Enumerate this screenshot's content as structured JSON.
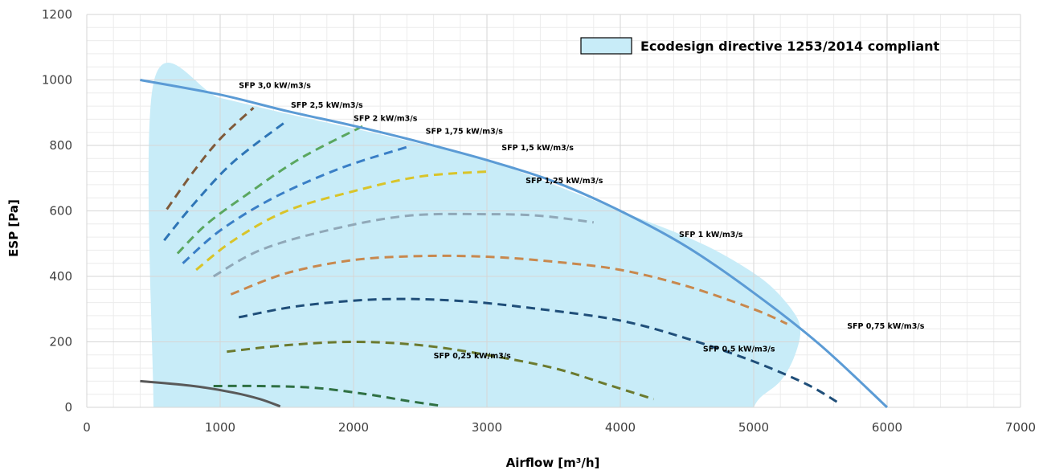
{
  "chart_data": {
    "type": "line",
    "xlabel": "Airflow [m³/h]",
    "ylabel": "ESP [Pa]",
    "xlim": [
      0,
      7000
    ],
    "ylim": [
      0,
      1200
    ],
    "x_ticks": [
      "0",
      "1000",
      "2000",
      "3000",
      "4000",
      "5000",
      "6000",
      "7000"
    ],
    "y_ticks": [
      "0",
      "200",
      "400",
      "600",
      "800",
      "1000",
      "1200"
    ],
    "grid": true,
    "colors": {
      "region_fill": "#c8ecf8",
      "fan_curve": "#5b9bd5",
      "low_curve": "#595959",
      "gridline": "#d9d9d9"
    },
    "region": {
      "label": "Ecodesign directive 1253/2014 compliant",
      "points": [
        [
          500,
          0
        ],
        [
          500,
          990
        ],
        [
          1000,
          945
        ],
        [
          1500,
          897
        ],
        [
          2000,
          852
        ],
        [
          2500,
          805
        ],
        [
          3000,
          755
        ],
        [
          3500,
          680
        ],
        [
          4000,
          600
        ],
        [
          4500,
          520
        ],
        [
          4800,
          460
        ],
        [
          5100,
          380
        ],
        [
          5300,
          290
        ],
        [
          5350,
          230
        ],
        [
          5300,
          150
        ],
        [
          5200,
          80
        ],
        [
          5050,
          30
        ],
        [
          5000,
          0
        ]
      ]
    },
    "fan_curve": {
      "points": [
        [
          400,
          1000
        ],
        [
          1000,
          955
        ],
        [
          1500,
          905
        ],
        [
          2000,
          860
        ],
        [
          2500,
          810
        ],
        [
          3000,
          755
        ],
        [
          3500,
          690
        ],
        [
          4000,
          600
        ],
        [
          4500,
          490
        ],
        [
          5000,
          350
        ],
        [
          5500,
          190
        ],
        [
          6000,
          0
        ]
      ]
    },
    "low_curve": {
      "points": [
        [
          400,
          80
        ],
        [
          800,
          65
        ],
        [
          1100,
          45
        ],
        [
          1300,
          25
        ],
        [
          1450,
          3
        ]
      ]
    },
    "series": [
      {
        "name": "SFP 3,0 kW/m3/s",
        "color": "#7f5a3a",
        "points": [
          [
            600,
            605
          ],
          [
            800,
            720
          ],
          [
            1000,
            820
          ],
          [
            1250,
            915
          ]
        ]
      },
      {
        "name": "SFP 2,5 kW/m3/s",
        "color": "#2e75b6",
        "points": [
          [
            580,
            510
          ],
          [
            800,
            620
          ],
          [
            1100,
            750
          ],
          [
            1500,
            875
          ]
        ]
      },
      {
        "name": "SFP 2 kW/m3/s",
        "color": "#5aa760",
        "points": [
          [
            680,
            470
          ],
          [
            900,
            560
          ],
          [
            1200,
            650
          ],
          [
            1600,
            760
          ],
          [
            2100,
            865
          ]
        ]
      },
      {
        "name": "SFP 1,75 kW/m3/s",
        "color": "#3a7fc6",
        "points": [
          [
            720,
            440
          ],
          [
            1000,
            540
          ],
          [
            1400,
            640
          ],
          [
            1900,
            730
          ],
          [
            2400,
            795
          ]
        ]
      },
      {
        "name": "SFP 1,5 kW/m3/s",
        "color": "#d9c429",
        "points": [
          [
            820,
            420
          ],
          [
            1100,
            510
          ],
          [
            1500,
            600
          ],
          [
            2000,
            660
          ],
          [
            2500,
            705
          ],
          [
            3000,
            720
          ]
        ]
      },
      {
        "name": "SFP 1,25 kW/m3/s",
        "color": "#90a8b8",
        "points": [
          [
            950,
            400
          ],
          [
            1300,
            480
          ],
          [
            1800,
            540
          ],
          [
            2400,
            585
          ],
          [
            3000,
            590
          ],
          [
            3400,
            585
          ],
          [
            3800,
            565
          ]
        ]
      },
      {
        "name": "SFP 1 kW/m3/s",
        "color": "#c8884e",
        "points": [
          [
            1080,
            345
          ],
          [
            1500,
            410
          ],
          [
            2000,
            450
          ],
          [
            2500,
            462
          ],
          [
            3000,
            460
          ],
          [
            3500,
            445
          ],
          [
            4000,
            420
          ],
          [
            4500,
            370
          ],
          [
            5000,
            300
          ],
          [
            5250,
            255
          ]
        ]
      },
      {
        "name": "SFP 0,75 kW/m3/s",
        "color": "#1f4e79",
        "points": [
          [
            1140,
            275
          ],
          [
            1600,
            310
          ],
          [
            2200,
            330
          ],
          [
            2800,
            325
          ],
          [
            3400,
            300
          ],
          [
            4000,
            265
          ],
          [
            4500,
            210
          ],
          [
            5000,
            140
          ],
          [
            5400,
            70
          ],
          [
            5650,
            10
          ]
        ]
      },
      {
        "name": "SFP 0,5 kW/m3/s",
        "color": "#6b7a2f",
        "points": [
          [
            1050,
            170
          ],
          [
            1500,
            190
          ],
          [
            2000,
            200
          ],
          [
            2500,
            190
          ],
          [
            3000,
            160
          ],
          [
            3500,
            120
          ],
          [
            3900,
            70
          ],
          [
            4250,
            25
          ]
        ]
      },
      {
        "name": "SFP 0,25 kW/m3/s",
        "color": "#2f7043",
        "points": [
          [
            950,
            65
          ],
          [
            1300,
            65
          ],
          [
            1700,
            60
          ],
          [
            2100,
            40
          ],
          [
            2400,
            20
          ],
          [
            2650,
            5
          ]
        ]
      }
    ],
    "annotations": [
      {
        "text": "SFP 3,0 kW/m3/s",
        "x": 1140,
        "y": 975
      },
      {
        "text": "SFP 2,5 kW/m3/s",
        "x": 1530,
        "y": 915
      },
      {
        "text": "SFP 2 kW/m3/s",
        "x": 2000,
        "y": 875
      },
      {
        "text": "SFP 1,75 kW/m3/s",
        "x": 2540,
        "y": 835
      },
      {
        "text": "SFP 1,5 kW/m3/s",
        "x": 3110,
        "y": 785
      },
      {
        "text": "SFP 1,25 kW/m3/s",
        "x": 3290,
        "y": 685
      },
      {
        "text": "SFP 1 kW/m3/s",
        "x": 4440,
        "y": 520
      },
      {
        "text": "SFP 0,75 kW/m3/s",
        "x": 5700,
        "y": 240
      },
      {
        "text": "SFP 0,5 kW/m3/s",
        "x": 4620,
        "y": 170
      },
      {
        "text": "SFP 0,25 kW/m3/s",
        "x": 2600,
        "y": 150
      }
    ]
  }
}
